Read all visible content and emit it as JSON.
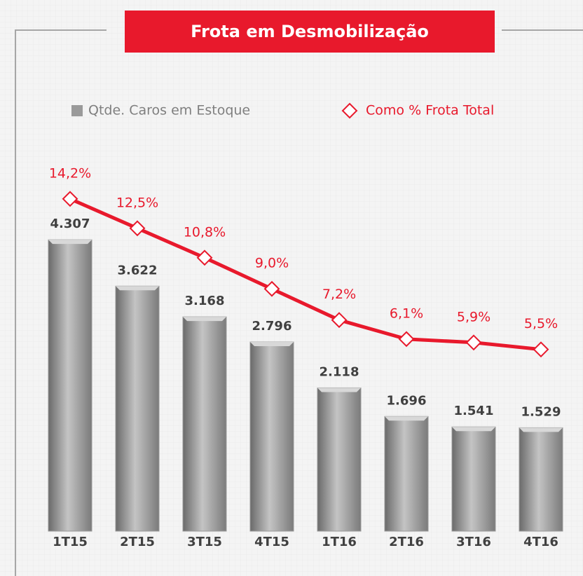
{
  "chart_data": {
    "type": "bar",
    "title": "Frota em Desmobilização",
    "categories": [
      "1T15",
      "2T15",
      "3T15",
      "4T15",
      "1T16",
      "2T16",
      "3T16",
      "4T16"
    ],
    "series": [
      {
        "name": "Qtde. Caros em Estoque",
        "color": "#9a9a9a",
        "values": [
          4307,
          3622,
          3168,
          2796,
          2118,
          1696,
          1541,
          1529
        ],
        "value_labels": [
          "4.307",
          "3.622",
          "3.168",
          "2.796",
          "2.118",
          "1.696",
          "1.541",
          "1.529"
        ]
      },
      {
        "name": "Como % Frota Total",
        "color": "#e8192c",
        "axis": "y2",
        "values": [
          14.2,
          12.5,
          10.8,
          9.0,
          7.2,
          6.1,
          5.9,
          5.5
        ],
        "value_labels": [
          "14,2%",
          "12,5%",
          "10,8%",
          "9,0%",
          "7,2%",
          "6,1%",
          "5,9%",
          "5,5%"
        ]
      }
    ],
    "ylim": [
      0,
      5500
    ],
    "y2lim": [
      -5,
      16.5
    ]
  }
}
